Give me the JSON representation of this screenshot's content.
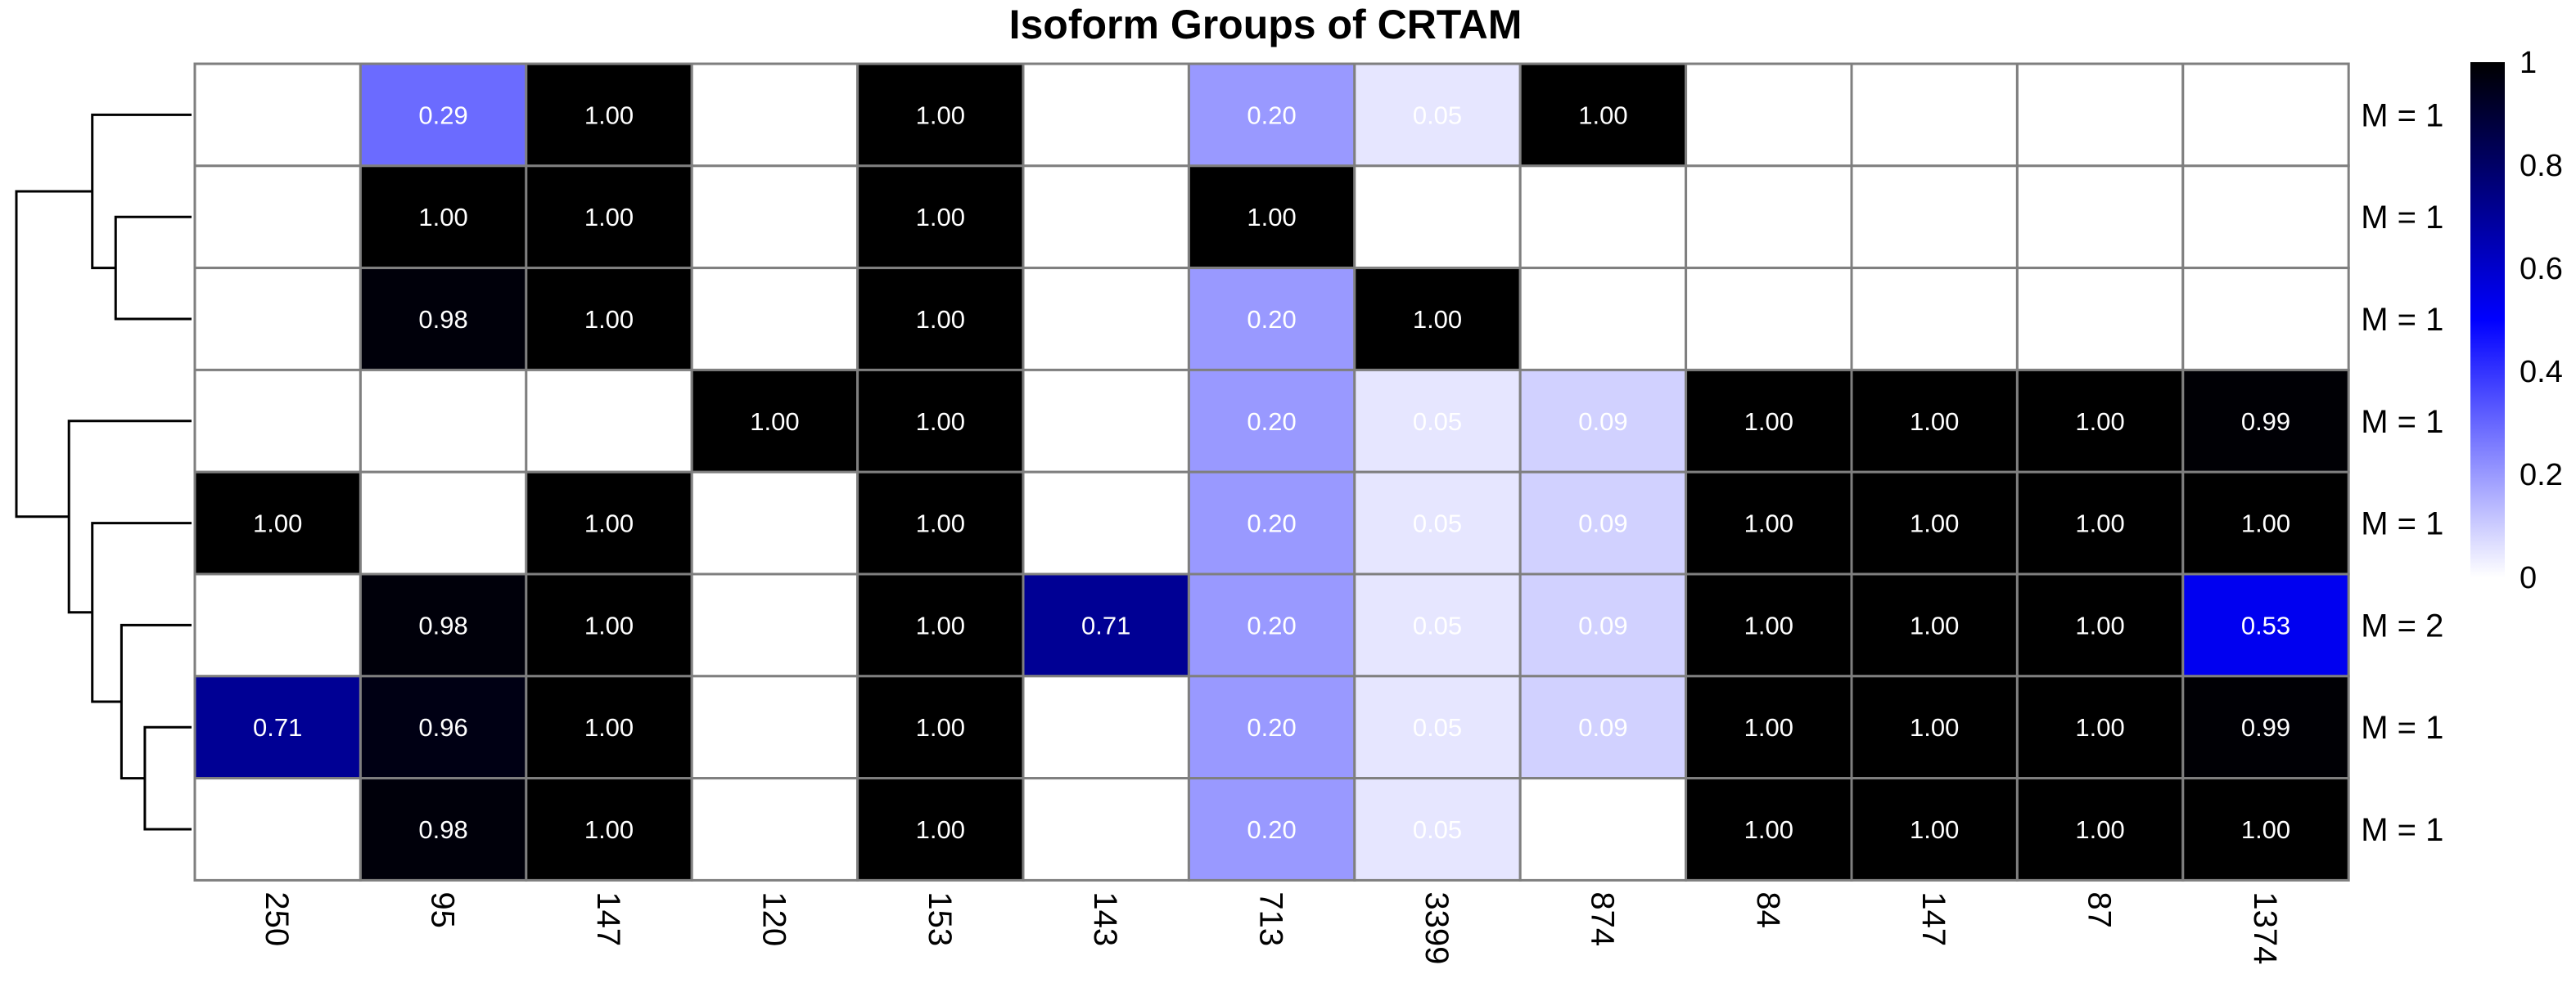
{
  "chart_data": {
    "type": "heatmap",
    "title": "Isoform Groups of CRTAM",
    "columns": [
      "250",
      "95",
      "147",
      "120",
      "153",
      "143",
      "713",
      "3399",
      "874",
      "84",
      "147",
      "87",
      "1374"
    ],
    "rows": [
      "M = 1",
      "M = 1",
      "M = 1",
      "M = 1",
      "M = 1",
      "M = 2",
      "M = 1",
      "M = 1"
    ],
    "values": [
      [
        null,
        0.29,
        1.0,
        null,
        1.0,
        null,
        0.2,
        0.05,
        1.0,
        null,
        null,
        null,
        null
      ],
      [
        null,
        1.0,
        1.0,
        null,
        1.0,
        null,
        1.0,
        null,
        null,
        null,
        null,
        null,
        null
      ],
      [
        null,
        0.98,
        1.0,
        null,
        1.0,
        null,
        0.2,
        1.0,
        null,
        null,
        null,
        null,
        null
      ],
      [
        null,
        null,
        null,
        1.0,
        1.0,
        null,
        0.2,
        0.05,
        0.09,
        1.0,
        1.0,
        1.0,
        0.99
      ],
      [
        1.0,
        null,
        1.0,
        null,
        1.0,
        null,
        0.2,
        0.05,
        0.09,
        1.0,
        1.0,
        1.0,
        1.0
      ],
      [
        null,
        0.98,
        1.0,
        null,
        1.0,
        0.71,
        0.2,
        0.05,
        0.09,
        1.0,
        1.0,
        1.0,
        0.53
      ],
      [
        0.71,
        0.96,
        1.0,
        null,
        1.0,
        null,
        0.2,
        0.05,
        0.09,
        1.0,
        1.0,
        1.0,
        0.99
      ],
      [
        null,
        0.98,
        1.0,
        null,
        1.0,
        null,
        0.2,
        0.05,
        null,
        1.0,
        1.0,
        1.0,
        1.0
      ]
    ],
    "value_labels": [
      [
        "",
        "0.29",
        "1.00",
        "",
        "1.00",
        "",
        "0.20",
        "0.05",
        "1.00",
        "",
        "",
        "",
        ""
      ],
      [
        "",
        "1.00",
        "1.00",
        "",
        "1.00",
        "",
        "1.00",
        "",
        "",
        "",
        "",
        "",
        ""
      ],
      [
        "",
        "0.98",
        "1.00",
        "",
        "1.00",
        "",
        "0.20",
        "1.00",
        "",
        "",
        "",
        "",
        ""
      ],
      [
        "",
        "",
        "",
        "1.00",
        "1.00",
        "",
        "0.20",
        "0.05",
        "0.09",
        "1.00",
        "1.00",
        "1.00",
        "0.99"
      ],
      [
        "1.00",
        "",
        "1.00",
        "",
        "1.00",
        "",
        "0.20",
        "0.05",
        "0.09",
        "1.00",
        "1.00",
        "1.00",
        "1.00"
      ],
      [
        "",
        "0.98",
        "1.00",
        "",
        "1.00",
        "0.71",
        "0.20",
        "0.05",
        "0.09",
        "1.00",
        "1.00",
        "1.00",
        "0.53"
      ],
      [
        "0.71",
        "0.96",
        "1.00",
        "",
        "1.00",
        "",
        "0.20",
        "0.05",
        "0.09",
        "1.00",
        "1.00",
        "1.00",
        "0.99"
      ],
      [
        "",
        "0.98",
        "1.00",
        "",
        "1.00",
        "",
        "0.20",
        "0.05",
        "",
        "1.00",
        "1.00",
        "1.00",
        "1.00"
      ]
    ],
    "color_scale": {
      "range": [
        0,
        1
      ],
      "stops": [
        "#ffffff",
        "#0000ff",
        "#000000"
      ],
      "ticks": [
        "0",
        "0.2",
        "0.4",
        "0.6",
        "0.8",
        "1"
      ]
    },
    "grid_color": "#7f7f7f",
    "dendrogram": {
      "side": "left",
      "leaf_order": [
        0,
        1,
        2,
        3,
        4,
        5,
        6,
        7
      ],
      "merges": [
        [
          6,
          7,
          0.08
        ],
        [
          5,
          "m0",
          0.12
        ],
        [
          4,
          "m1",
          0.17
        ],
        [
          3,
          "m2",
          0.21
        ],
        [
          1,
          2,
          0.13
        ],
        [
          0,
          "m4",
          0.17
        ],
        [
          "m5",
          "m3",
          0.3
        ]
      ]
    },
    "legend_position": "right"
  }
}
